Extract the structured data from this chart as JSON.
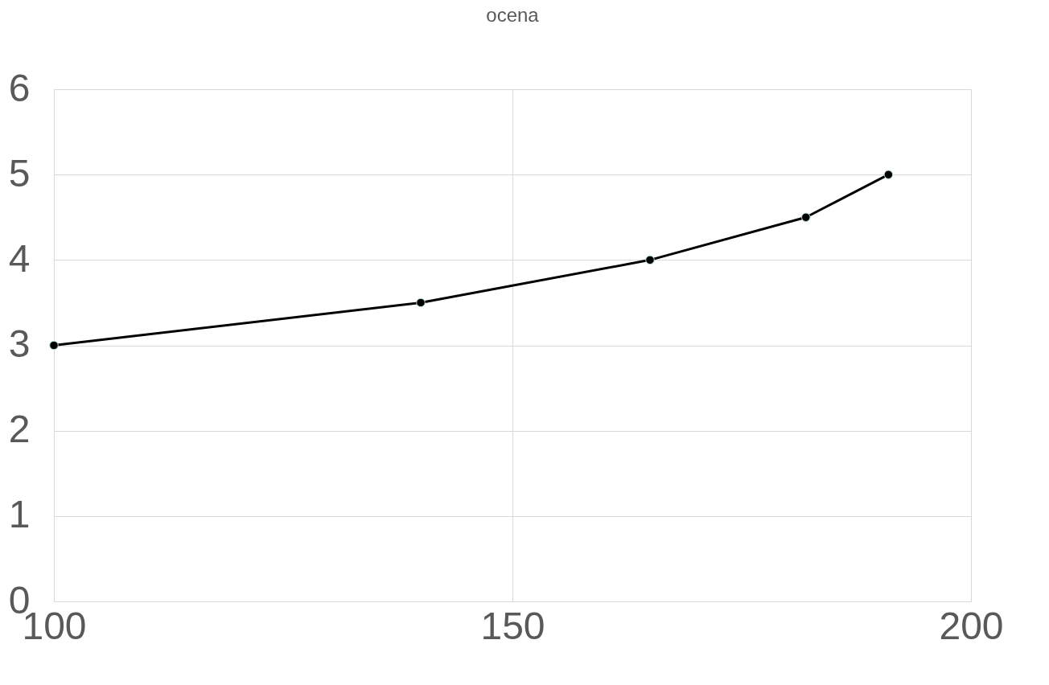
{
  "chart_data": {
    "type": "line",
    "title": "ocena",
    "x": [
      100,
      140,
      165,
      182,
      191
    ],
    "series": [
      {
        "color": "#000000",
        "values": [
          3,
          3.5,
          4,
          4.5,
          5
        ]
      }
    ],
    "xlim": [
      100,
      200
    ],
    "xticks": [
      100,
      150,
      200
    ],
    "ylim": [
      0,
      6
    ],
    "yticks": [
      0,
      1,
      2,
      3,
      4,
      5,
      6
    ],
    "grid": true,
    "marker": "circle",
    "line_style": "solid"
  }
}
